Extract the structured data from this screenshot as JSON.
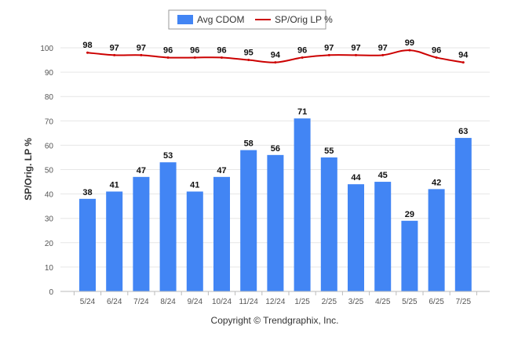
{
  "chart_data": {
    "type": "bar",
    "categories": [
      "5/24",
      "6/24",
      "7/24",
      "8/24",
      "9/24",
      "10/24",
      "11/24",
      "12/24",
      "1/25",
      "2/25",
      "3/25",
      "4/25",
      "5/25",
      "6/25",
      "7/25"
    ],
    "series": [
      {
        "name": "Avg CDOM",
        "type": "bar",
        "color": "#4285f4",
        "values": [
          38,
          41,
          47,
          53,
          41,
          47,
          58,
          56,
          71,
          55,
          44,
          45,
          29,
          42,
          63
        ]
      },
      {
        "name": "SP/Orig LP %",
        "type": "line",
        "color": "#cc0000",
        "values": [
          98,
          97,
          97,
          96,
          96,
          96,
          95,
          94,
          96,
          97,
          97,
          97,
          99,
          96,
          94
        ]
      }
    ],
    "xlabel": "",
    "ylabel": "SP/Orig. LP %",
    "ylim": [
      0,
      100
    ],
    "yticks": [
      0,
      10,
      20,
      30,
      40,
      50,
      60,
      70,
      80,
      90,
      100
    ],
    "grid": true,
    "legend": "top-center"
  },
  "footer": {
    "copyright": "Copyright © Trendgraphix, Inc."
  }
}
